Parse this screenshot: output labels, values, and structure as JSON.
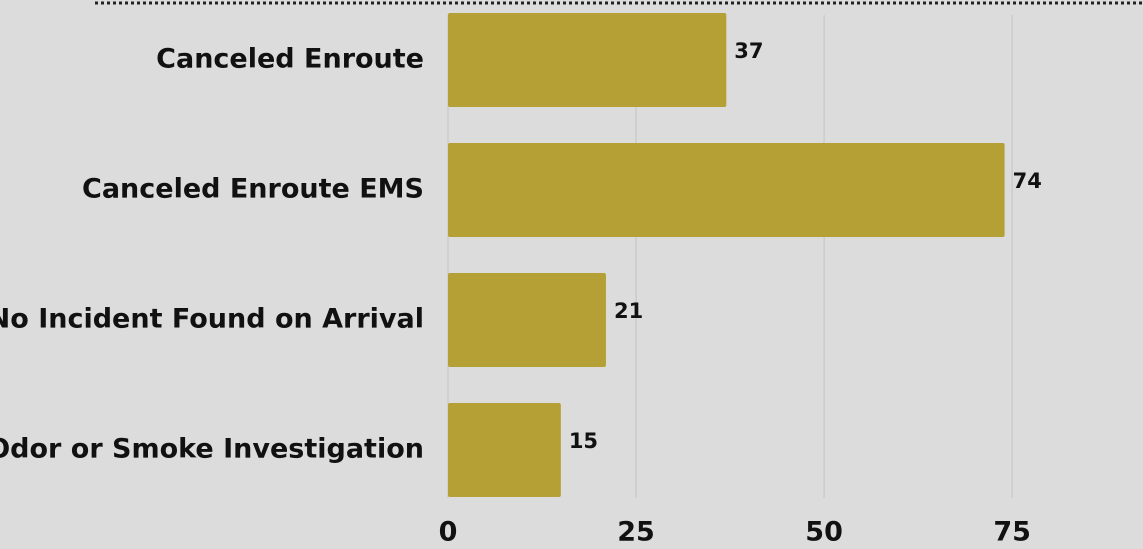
{
  "chart_data": {
    "type": "bar",
    "orientation": "horizontal",
    "categories": [
      "Canceled Enroute",
      "Canceled Enroute EMS",
      "No Incident Found on Arrival",
      "Odor or Smoke Investigation"
    ],
    "values": [
      37,
      74,
      21,
      15
    ],
    "color": "#b5a035",
    "xlim": [
      0,
      92.4
    ],
    "xticks": [
      0,
      25,
      50,
      75
    ],
    "grid": true
  }
}
